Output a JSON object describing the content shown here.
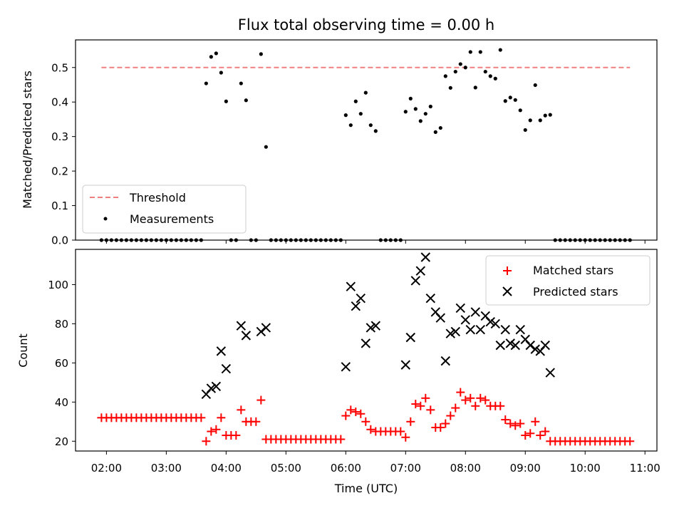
{
  "chart_data": [
    {
      "type": "scatter",
      "title": "Flux total observing time = 0.00 h",
      "xlabel": "",
      "ylabel": "Matched/Predicted stars",
      "xlim": [
        "01:29",
        "11:12"
      ],
      "ylim": [
        0,
        0.58
      ],
      "y_ticks": [
        "0.0",
        "0.1",
        "0.2",
        "0.3",
        "0.4",
        "0.5"
      ],
      "grid": false,
      "legend": {
        "placement": "lower-left",
        "entries": [
          "Threshold",
          "Measurements"
        ]
      },
      "threshold_line": {
        "name": "Threshold",
        "y": 0.5,
        "x": [
          "01:55",
          "10:45"
        ],
        "color": "#f08080",
        "style": "dashed"
      },
      "series": [
        {
          "name": "Measurements",
          "color": "#000000",
          "marker": "dot",
          "points": [
            [
              "01:55",
              0
            ],
            [
              "02:00",
              0
            ],
            [
              "02:05",
              0
            ],
            [
              "02:10",
              0
            ],
            [
              "02:15",
              0
            ],
            [
              "02:20",
              0
            ],
            [
              "02:25",
              0
            ],
            [
              "02:30",
              0
            ],
            [
              "02:35",
              0
            ],
            [
              "02:40",
              0
            ],
            [
              "02:45",
              0
            ],
            [
              "02:50",
              0
            ],
            [
              "02:55",
              0
            ],
            [
              "03:00",
              0
            ],
            [
              "03:05",
              0
            ],
            [
              "03:10",
              0
            ],
            [
              "03:15",
              0
            ],
            [
              "03:20",
              0
            ],
            [
              "03:25",
              0
            ],
            [
              "03:30",
              0
            ],
            [
              "03:35",
              0
            ],
            [
              "03:40",
              0.454
            ],
            [
              "03:45",
              0.531
            ],
            [
              "03:50",
              0.541
            ],
            [
              "03:55",
              0.485
            ],
            [
              "04:00",
              0.402
            ],
            [
              "04:05",
              0
            ],
            [
              "04:10",
              0
            ],
            [
              "04:15",
              0.454
            ],
            [
              "04:20",
              0.405
            ],
            [
              "04:25",
              0
            ],
            [
              "04:30",
              0
            ],
            [
              "04:35",
              0.539
            ],
            [
              "04:40",
              0.27
            ],
            [
              "04:45",
              0
            ],
            [
              "04:50",
              0
            ],
            [
              "04:55",
              0
            ],
            [
              "05:00",
              0
            ],
            [
              "05:05",
              0
            ],
            [
              "05:10",
              0
            ],
            [
              "05:15",
              0
            ],
            [
              "05:20",
              0
            ],
            [
              "05:25",
              0
            ],
            [
              "05:30",
              0
            ],
            [
              "05:35",
              0
            ],
            [
              "05:40",
              0
            ],
            [
              "05:45",
              0
            ],
            [
              "05:50",
              0
            ],
            [
              "05:55",
              0
            ],
            [
              "06:00",
              0.362
            ],
            [
              "06:05",
              0.333
            ],
            [
              "06:10",
              0.402
            ],
            [
              "06:15",
              0.366
            ],
            [
              "06:20",
              0.427
            ],
            [
              "06:25",
              0.333
            ],
            [
              "06:30",
              0.316
            ],
            [
              "06:35",
              0
            ],
            [
              "06:40",
              0
            ],
            [
              "06:45",
              0
            ],
            [
              "06:50",
              0
            ],
            [
              "06:55",
              0
            ],
            [
              "07:00",
              0.372
            ],
            [
              "07:05",
              0.41
            ],
            [
              "07:10",
              0.38
            ],
            [
              "07:15",
              0.345
            ],
            [
              "07:20",
              0.366
            ],
            [
              "07:25",
              0.387
            ],
            [
              "07:30",
              0.313
            ],
            [
              "07:35",
              0.325
            ],
            [
              "07:40",
              0.475
            ],
            [
              "07:45",
              0.441
            ],
            [
              "07:50",
              0.488
            ],
            [
              "07:55",
              0.51
            ],
            [
              "08:00",
              0.5
            ],
            [
              "08:05",
              0.545
            ],
            [
              "08:10",
              0.442
            ],
            [
              "08:15",
              0.545
            ],
            [
              "08:20",
              0.488
            ],
            [
              "08:25",
              0.475
            ],
            [
              "08:30",
              0.468
            ],
            [
              "08:35",
              0.551
            ],
            [
              "08:40",
              0.403
            ],
            [
              "08:45",
              0.413
            ],
            [
              "08:50",
              0.406
            ],
            [
              "08:55",
              0.376
            ],
            [
              "09:00",
              0.319
            ],
            [
              "09:05",
              0.347
            ],
            [
              "09:10",
              0.449
            ],
            [
              "09:15",
              0.347
            ],
            [
              "09:20",
              0.361
            ],
            [
              "09:25",
              0.363
            ],
            [
              "09:30",
              0
            ],
            [
              "09:35",
              0
            ],
            [
              "09:40",
              0
            ],
            [
              "09:45",
              0
            ],
            [
              "09:50",
              0
            ],
            [
              "09:55",
              0
            ],
            [
              "10:00",
              0
            ],
            [
              "10:05",
              0
            ],
            [
              "10:10",
              0
            ],
            [
              "10:15",
              0
            ],
            [
              "10:20",
              0
            ],
            [
              "10:25",
              0
            ],
            [
              "10:30",
              0
            ],
            [
              "10:35",
              0
            ],
            [
              "10:40",
              0
            ],
            [
              "10:45",
              0
            ]
          ]
        }
      ]
    },
    {
      "type": "scatter",
      "xlabel": "Time (UTC)",
      "ylabel": "Count",
      "xlim": [
        "01:29",
        "11:12"
      ],
      "ylim": [
        15,
        118
      ],
      "x_ticks": [
        "02:00",
        "03:00",
        "04:00",
        "05:00",
        "06:00",
        "07:00",
        "08:00",
        "09:00",
        "10:00",
        "11:00"
      ],
      "y_ticks": [
        "20",
        "40",
        "60",
        "80",
        "100"
      ],
      "grid": false,
      "legend": {
        "placement": "top-right",
        "entries": [
          "Matched stars",
          "Predicted stars"
        ]
      },
      "series": [
        {
          "name": "Matched stars",
          "color": "#ff0000",
          "marker": "plus",
          "points": [
            [
              "01:55",
              32
            ],
            [
              "02:00",
              32
            ],
            [
              "02:05",
              32
            ],
            [
              "02:10",
              32
            ],
            [
              "02:15",
              32
            ],
            [
              "02:20",
              32
            ],
            [
              "02:25",
              32
            ],
            [
              "02:30",
              32
            ],
            [
              "02:35",
              32
            ],
            [
              "02:40",
              32
            ],
            [
              "02:45",
              32
            ],
            [
              "02:50",
              32
            ],
            [
              "02:55",
              32
            ],
            [
              "03:00",
              32
            ],
            [
              "03:05",
              32
            ],
            [
              "03:10",
              32
            ],
            [
              "03:15",
              32
            ],
            [
              "03:20",
              32
            ],
            [
              "03:25",
              32
            ],
            [
              "03:30",
              32
            ],
            [
              "03:35",
              32
            ],
            [
              "03:40",
              20
            ],
            [
              "03:45",
              25
            ],
            [
              "03:50",
              26
            ],
            [
              "03:55",
              32
            ],
            [
              "04:00",
              23
            ],
            [
              "04:05",
              23
            ],
            [
              "04:10",
              23
            ],
            [
              "04:15",
              36
            ],
            [
              "04:20",
              30
            ],
            [
              "04:25",
              30
            ],
            [
              "04:30",
              30
            ],
            [
              "04:35",
              41
            ],
            [
              "04:40",
              21
            ],
            [
              "04:45",
              21
            ],
            [
              "04:50",
              21
            ],
            [
              "04:55",
              21
            ],
            [
              "05:00",
              21
            ],
            [
              "05:05",
              21
            ],
            [
              "05:10",
              21
            ],
            [
              "05:15",
              21
            ],
            [
              "05:20",
              21
            ],
            [
              "05:25",
              21
            ],
            [
              "05:30",
              21
            ],
            [
              "05:35",
              21
            ],
            [
              "05:40",
              21
            ],
            [
              "05:45",
              21
            ],
            [
              "05:50",
              21
            ],
            [
              "05:55",
              21
            ],
            [
              "06:00",
              33
            ],
            [
              "06:05",
              36
            ],
            [
              "06:10",
              35
            ],
            [
              "06:15",
              34
            ],
            [
              "06:20",
              30
            ],
            [
              "06:25",
              26
            ],
            [
              "06:30",
              25
            ],
            [
              "06:35",
              25
            ],
            [
              "06:40",
              25
            ],
            [
              "06:45",
              25
            ],
            [
              "06:50",
              25
            ],
            [
              "06:55",
              25
            ],
            [
              "07:00",
              22
            ],
            [
              "07:05",
              30
            ],
            [
              "07:10",
              39
            ],
            [
              "07:15",
              38
            ],
            [
              "07:20",
              42
            ],
            [
              "07:25",
              36
            ],
            [
              "07:30",
              27
            ],
            [
              "07:35",
              27
            ],
            [
              "07:40",
              29
            ],
            [
              "07:45",
              33
            ],
            [
              "07:50",
              37
            ],
            [
              "07:55",
              45
            ],
            [
              "08:00",
              41
            ],
            [
              "08:05",
              42
            ],
            [
              "08:10",
              38
            ],
            [
              "08:15",
              42
            ],
            [
              "08:20",
              41
            ],
            [
              "08:25",
              38
            ],
            [
              "08:30",
              38
            ],
            [
              "08:35",
              38
            ],
            [
              "08:40",
              31
            ],
            [
              "08:45",
              29
            ],
            [
              "08:50",
              28
            ],
            [
              "08:55",
              29
            ],
            [
              "09:00",
              23
            ],
            [
              "09:05",
              24
            ],
            [
              "09:10",
              30
            ],
            [
              "09:15",
              23
            ],
            [
              "09:20",
              25
            ],
            [
              "09:25",
              20
            ],
            [
              "09:30",
              20
            ],
            [
              "09:35",
              20
            ],
            [
              "09:40",
              20
            ],
            [
              "09:45",
              20
            ],
            [
              "09:50",
              20
            ],
            [
              "09:55",
              20
            ],
            [
              "10:00",
              20
            ],
            [
              "10:05",
              20
            ],
            [
              "10:10",
              20
            ],
            [
              "10:15",
              20
            ],
            [
              "10:20",
              20
            ],
            [
              "10:25",
              20
            ],
            [
              "10:30",
              20
            ],
            [
              "10:35",
              20
            ],
            [
              "10:40",
              20
            ],
            [
              "10:45",
              20
            ]
          ]
        },
        {
          "name": "Predicted stars",
          "color": "#000000",
          "marker": "x",
          "points": [
            [
              "03:40",
              44
            ],
            [
              "03:45",
              47
            ],
            [
              "03:50",
              48
            ],
            [
              "03:55",
              66
            ],
            [
              "04:00",
              57
            ],
            [
              "04:15",
              79
            ],
            [
              "04:20",
              74
            ],
            [
              "04:35",
              76
            ],
            [
              "04:40",
              78
            ],
            [
              "06:00",
              58
            ],
            [
              "06:05",
              99
            ],
            [
              "06:10",
              89
            ],
            [
              "06:15",
              93
            ],
            [
              "06:20",
              70
            ],
            [
              "06:25",
              78
            ],
            [
              "06:30",
              79
            ],
            [
              "07:00",
              59
            ],
            [
              "07:05",
              73
            ],
            [
              "07:10",
              102
            ],
            [
              "07:15",
              107
            ],
            [
              "07:20",
              114
            ],
            [
              "07:25",
              93
            ],
            [
              "07:30",
              86
            ],
            [
              "07:35",
              83
            ],
            [
              "07:40",
              61
            ],
            [
              "07:45",
              75
            ],
            [
              "07:50",
              76
            ],
            [
              "07:55",
              88
            ],
            [
              "08:00",
              82
            ],
            [
              "08:05",
              77
            ],
            [
              "08:10",
              86
            ],
            [
              "08:15",
              77
            ],
            [
              "08:20",
              84
            ],
            [
              "08:25",
              81
            ],
            [
              "08:30",
              80
            ],
            [
              "08:35",
              69
            ],
            [
              "08:40",
              77
            ],
            [
              "08:45",
              70
            ],
            [
              "08:50",
              69
            ],
            [
              "08:55",
              77
            ],
            [
              "09:00",
              72
            ],
            [
              "09:05",
              69
            ],
            [
              "09:10",
              67
            ],
            [
              "09:15",
              66
            ],
            [
              "09:20",
              69
            ],
            [
              "09:25",
              55
            ]
          ]
        }
      ]
    }
  ]
}
